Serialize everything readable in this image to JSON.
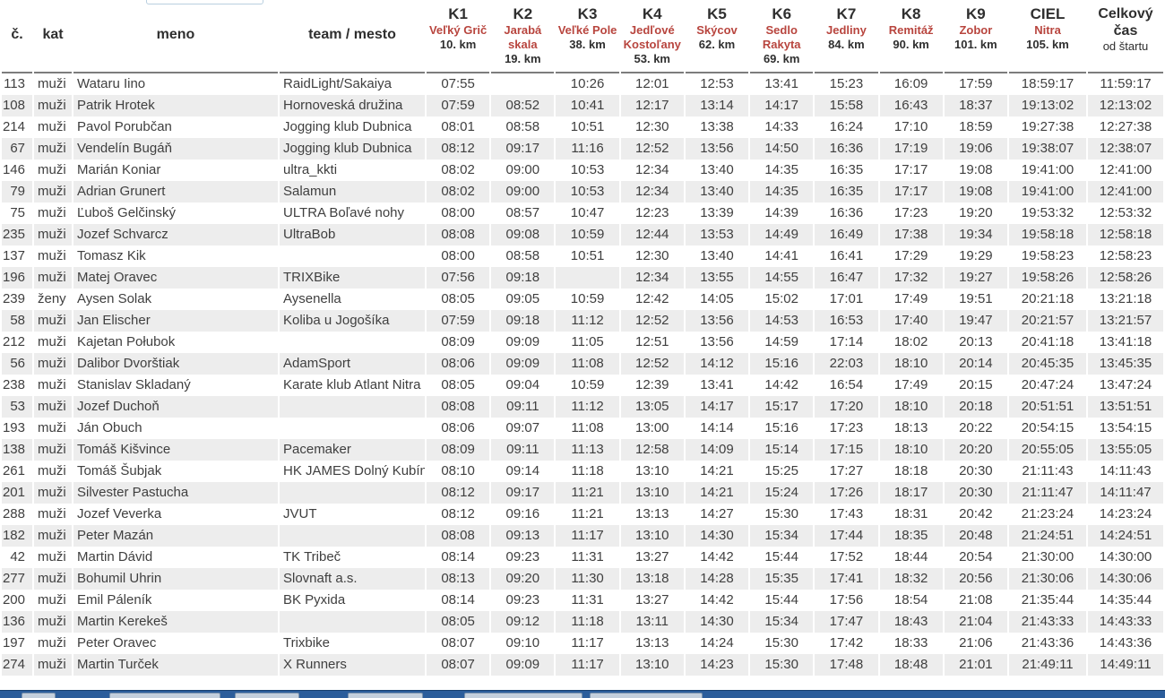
{
  "page": {
    "filter_input": {
      "value": "",
      "placeholder": ""
    }
  },
  "table": {
    "columns": [
      {
        "id": "bib",
        "type": "plain",
        "label": "č."
      },
      {
        "id": "kat",
        "type": "plain",
        "label": "kat"
      },
      {
        "id": "meno",
        "type": "plain",
        "label": "meno"
      },
      {
        "id": "team",
        "type": "plain",
        "label": "team / mesto"
      },
      {
        "id": "k1",
        "type": "checkpoint",
        "label": "K1",
        "place": "Veľký Grič",
        "dist": "10. km"
      },
      {
        "id": "k2",
        "type": "checkpoint",
        "label": "K2",
        "place": "Jarabá skala",
        "dist": "19. km"
      },
      {
        "id": "k3",
        "type": "checkpoint",
        "label": "K3",
        "place": "Veľké Pole",
        "dist": "38. km"
      },
      {
        "id": "k4",
        "type": "checkpoint",
        "label": "K4",
        "place": "Jedľové Kostoľany",
        "dist": "53. km"
      },
      {
        "id": "k5",
        "type": "checkpoint",
        "label": "K5",
        "place": "Skýcov",
        "dist": "62. km"
      },
      {
        "id": "k6",
        "type": "checkpoint",
        "label": "K6",
        "place": "Sedlo Rakyta",
        "dist": "69. km"
      },
      {
        "id": "k7",
        "type": "checkpoint",
        "label": "K7",
        "place": "Jedliny",
        "dist": "84. km"
      },
      {
        "id": "k8",
        "type": "checkpoint",
        "label": "K8",
        "place": "Remitáž",
        "dist": "90. km"
      },
      {
        "id": "k9",
        "type": "checkpoint",
        "label": "K9",
        "place": "Zobor",
        "dist": "101. km"
      },
      {
        "id": "ciel",
        "type": "checkpoint",
        "label": "CIEL",
        "place": "Nitra",
        "dist": "105. km"
      },
      {
        "id": "total",
        "type": "total",
        "label": "Celkový čas",
        "sub": "od štartu"
      }
    ],
    "rows": [
      [
        "113",
        "muži",
        "Wataru Iino",
        "RaidLight/Sakaiya",
        "07:55",
        "",
        "10:26",
        "12:01",
        "12:53",
        "13:41",
        "15:23",
        "16:09",
        "17:59",
        "18:59:17",
        "11:59:17"
      ],
      [
        "108",
        "muži",
        "Patrik Hrotek",
        "Hornoveská družina",
        "07:59",
        "08:52",
        "10:41",
        "12:17",
        "13:14",
        "14:17",
        "15:58",
        "16:43",
        "18:37",
        "19:13:02",
        "12:13:02"
      ],
      [
        "214",
        "muži",
        "Pavol Porubčan",
        "Jogging klub Dubnica",
        "08:01",
        "08:58",
        "10:51",
        "12:30",
        "13:38",
        "14:33",
        "16:24",
        "17:10",
        "18:59",
        "19:27:38",
        "12:27:38"
      ],
      [
        "67",
        "muži",
        "Vendelín Bugáň",
        "Jogging klub Dubnica",
        "08:12",
        "09:17",
        "11:16",
        "12:52",
        "13:56",
        "14:50",
        "16:36",
        "17:19",
        "19:06",
        "19:38:07",
        "12:38:07"
      ],
      [
        "146",
        "muži",
        "Marián Koniar",
        "ultra_kkti",
        "08:02",
        "09:00",
        "10:53",
        "12:34",
        "13:40",
        "14:35",
        "16:35",
        "17:17",
        "19:08",
        "19:41:00",
        "12:41:00"
      ],
      [
        "79",
        "muži",
        "Adrian Grunert",
        "Salamun",
        "08:02",
        "09:00",
        "10:53",
        "12:34",
        "13:40",
        "14:35",
        "16:35",
        "17:17",
        "19:08",
        "19:41:00",
        "12:41:00"
      ],
      [
        "75",
        "muži",
        "Ľuboš Gelčinský",
        "ULTRA Boľavé nohy",
        "08:00",
        "08:57",
        "10:47",
        "12:23",
        "13:39",
        "14:39",
        "16:36",
        "17:23",
        "19:20",
        "19:53:32",
        "12:53:32"
      ],
      [
        "235",
        "muži",
        "Jozef Schvarcz",
        "UltraBob",
        "08:08",
        "09:08",
        "10:59",
        "12:44",
        "13:53",
        "14:49",
        "16:49",
        "17:38",
        "19:34",
        "19:58:18",
        "12:58:18"
      ],
      [
        "137",
        "muži",
        "Tomasz Kik",
        "",
        "08:00",
        "08:58",
        "10:51",
        "12:30",
        "13:40",
        "14:41",
        "16:41",
        "17:29",
        "19:29",
        "19:58:23",
        "12:58:23"
      ],
      [
        "196",
        "muži",
        "Matej Oravec",
        "TRIXBike",
        "07:56",
        "09:18",
        "",
        "12:34",
        "13:55",
        "14:55",
        "16:47",
        "17:32",
        "19:27",
        "19:58:26",
        "12:58:26"
      ],
      [
        "239",
        "ženy",
        "Aysen Solak",
        "Aysenella",
        "08:05",
        "09:05",
        "10:59",
        "12:42",
        "14:05",
        "15:02",
        "17:01",
        "17:49",
        "19:51",
        "20:21:18",
        "13:21:18"
      ],
      [
        "58",
        "muži",
        "Jan Elischer",
        "Koliba u Jogošíka",
        "07:59",
        "09:18",
        "11:12",
        "12:52",
        "13:56",
        "14:53",
        "16:53",
        "17:40",
        "19:47",
        "20:21:57",
        "13:21:57"
      ],
      [
        "212",
        "muži",
        "Kajetan Połubok",
        "",
        "08:09",
        "09:09",
        "11:05",
        "12:51",
        "13:56",
        "14:59",
        "17:14",
        "18:02",
        "20:13",
        "20:41:18",
        "13:41:18"
      ],
      [
        "56",
        "muži",
        "Dalibor Dvorštiak",
        "AdamSport",
        "08:06",
        "09:09",
        "11:08",
        "12:52",
        "14:12",
        "15:16",
        "22:03",
        "18:10",
        "20:14",
        "20:45:35",
        "13:45:35"
      ],
      [
        "238",
        "muži",
        "Stanislav Skladaný",
        "Karate klub Atlant Nitra",
        "08:05",
        "09:04",
        "10:59",
        "12:39",
        "13:41",
        "14:42",
        "16:54",
        "17:49",
        "20:15",
        "20:47:24",
        "13:47:24"
      ],
      [
        "53",
        "muži",
        "Jozef Duchoň",
        "",
        "08:08",
        "09:11",
        "11:12",
        "13:05",
        "14:17",
        "15:17",
        "17:20",
        "18:10",
        "20:18",
        "20:51:51",
        "13:51:51"
      ],
      [
        "193",
        "muži",
        "Ján Obuch",
        "",
        "08:06",
        "09:07",
        "11:08",
        "13:00",
        "14:14",
        "15:16",
        "17:23",
        "18:13",
        "20:22",
        "20:54:15",
        "13:54:15"
      ],
      [
        "138",
        "muži",
        "Tomáš Kišvince",
        "Pacemaker",
        "08:09",
        "09:11",
        "11:13",
        "12:58",
        "14:09",
        "15:14",
        "17:15",
        "18:10",
        "20:20",
        "20:55:05",
        "13:55:05"
      ],
      [
        "261",
        "muži",
        "Tomáš Šubjak",
        "HK JAMES Dolný Kubín",
        "08:10",
        "09:14",
        "11:18",
        "13:10",
        "14:21",
        "15:25",
        "17:27",
        "18:18",
        "20:30",
        "21:11:43",
        "14:11:43"
      ],
      [
        "201",
        "muži",
        "Silvester Pastucha",
        "",
        "08:12",
        "09:17",
        "11:21",
        "13:10",
        "14:21",
        "15:24",
        "17:26",
        "18:17",
        "20:30",
        "21:11:47",
        "14:11:47"
      ],
      [
        "288",
        "muži",
        "Jozef Veverka",
        "JVUT",
        "08:12",
        "09:16",
        "11:21",
        "13:13",
        "14:27",
        "15:30",
        "17:43",
        "18:31",
        "20:42",
        "21:23:24",
        "14:23:24"
      ],
      [
        "182",
        "muži",
        "Peter Mazán",
        "",
        "08:08",
        "09:13",
        "11:17",
        "13:10",
        "14:30",
        "15:34",
        "17:44",
        "18:35",
        "20:48",
        "21:24:51",
        "14:24:51"
      ],
      [
        "42",
        "muži",
        "Martin Dávid",
        "TK Tribeč",
        "08:14",
        "09:23",
        "11:31",
        "13:27",
        "14:42",
        "15:44",
        "17:52",
        "18:44",
        "20:54",
        "21:30:00",
        "14:30:00"
      ],
      [
        "277",
        "muži",
        "Bohumil Uhrin",
        "Slovnaft a.s.",
        "08:13",
        "09:20",
        "11:30",
        "13:18",
        "14:28",
        "15:35",
        "17:41",
        "18:32",
        "20:56",
        "21:30:06",
        "14:30:06"
      ],
      [
        "200",
        "muži",
        "Emil Páleník",
        "BK Pyxida",
        "08:14",
        "09:23",
        "11:31",
        "13:27",
        "14:42",
        "15:44",
        "17:56",
        "18:54",
        "21:08",
        "21:35:44",
        "14:35:44"
      ],
      [
        "136",
        "muži",
        "Martin Kerekeš",
        "",
        "08:05",
        "09:12",
        "11:18",
        "13:11",
        "14:30",
        "15:34",
        "17:47",
        "18:43",
        "21:04",
        "21:43:33",
        "14:43:33"
      ],
      [
        "197",
        "muži",
        "Peter Oravec",
        "Trixbike",
        "08:07",
        "09:10",
        "11:17",
        "13:13",
        "14:24",
        "15:30",
        "17:42",
        "18:33",
        "21:06",
        "21:43:36",
        "14:43:36"
      ],
      [
        "274",
        "muži",
        "Martin Turček",
        "X Runners",
        "08:07",
        "09:09",
        "11:17",
        "13:10",
        "14:23",
        "15:30",
        "17:48",
        "18:48",
        "21:01",
        "21:49:11",
        "14:49:11"
      ]
    ]
  },
  "colors": {
    "checkpoint_place_red": "#b8453e",
    "stripe_gray": "#ededed",
    "header_rule_gray": "#7d7d7d",
    "taskbar_blue": "#2b5d9b"
  }
}
